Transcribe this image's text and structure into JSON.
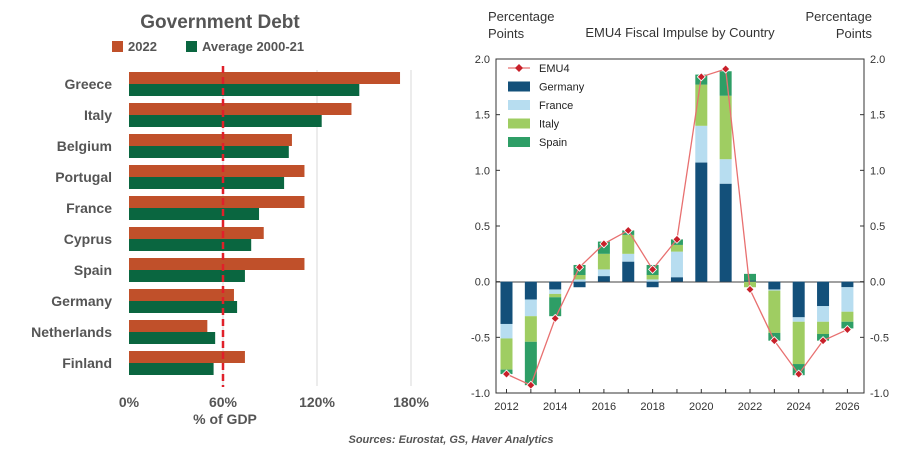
{
  "source": "Sources: Eurostat, GS, Haver Analytics",
  "colors": {
    "bar_2022": "#c0502a",
    "bar_avg": "#0a6640",
    "ref_line": "#e0202a",
    "germany": "#13507a",
    "france": "#b7ddf0",
    "italy": "#9fcd62",
    "spain": "#2e9e66",
    "emu4_line": "#e87070",
    "emu4_marker": "#c8202a"
  },
  "chart_data": [
    {
      "type": "bar",
      "orientation": "horizontal",
      "title": "Government Debt",
      "xlabel": "% of GDP",
      "xlim": [
        0,
        180
      ],
      "xticks": [
        "0%",
        "60%",
        "120%",
        "180%"
      ],
      "reference_line": 60,
      "legend": "top-left",
      "categories": [
        "Greece",
        "Italy",
        "Belgium",
        "Portugal",
        "France",
        "Cyprus",
        "Spain",
        "Germany",
        "Netherlands",
        "Finland"
      ],
      "series": [
        {
          "name": "2022",
          "values": [
            173,
            142,
            104,
            112,
            112,
            86,
            112,
            67,
            50,
            74
          ]
        },
        {
          "name": "Average 2000-21",
          "values": [
            147,
            123,
            102,
            99,
            83,
            78,
            74,
            69,
            55,
            54
          ]
        }
      ]
    },
    {
      "type": "bar",
      "stacked": true,
      "title": "EMU4 Fiscal Impulse by Country",
      "ylabel_left": "Percentage Points",
      "ylabel_right": "Percentage Points",
      "ylim": [
        -1.0,
        2.0
      ],
      "yticks": [
        "-1.0",
        "-0.5",
        "0.0",
        "0.5",
        "1.0",
        "1.5",
        "2.0"
      ],
      "legend": "top-left",
      "x": [
        2012,
        2013,
        2014,
        2015,
        2016,
        2017,
        2018,
        2019,
        2020,
        2021,
        2022,
        2023,
        2024,
        2025,
        2026
      ],
      "xticks": [
        "2012",
        "2014",
        "2016",
        "2018",
        "2020",
        "2022",
        "2024",
        "2026"
      ],
      "series": [
        {
          "name": "Germany",
          "values": [
            -0.38,
            -0.16,
            -0.07,
            -0.05,
            0.05,
            0.18,
            -0.05,
            0.04,
            1.07,
            0.88,
            0.01,
            -0.07,
            -0.32,
            -0.22,
            -0.05
          ]
        },
        {
          "name": "France",
          "values": [
            -0.13,
            -0.15,
            -0.04,
            0.02,
            0.06,
            0.07,
            0.02,
            0.23,
            0.33,
            0.22,
            0.0,
            -0.01,
            -0.04,
            -0.14,
            -0.22
          ]
        },
        {
          "name": "Italy",
          "values": [
            -0.28,
            -0.23,
            -0.03,
            0.04,
            0.14,
            0.17,
            0.04,
            0.06,
            0.37,
            0.57,
            -0.05,
            -0.38,
            -0.38,
            -0.11,
            -0.09
          ]
        },
        {
          "name": "Spain",
          "values": [
            -0.04,
            -0.39,
            -0.17,
            0.09,
            0.11,
            0.04,
            0.09,
            0.05,
            0.09,
            0.22,
            0.06,
            -0.07,
            -0.1,
            -0.06,
            -0.06
          ]
        },
        {
          "name": "EMU4",
          "type": "line",
          "values": [
            -0.83,
            -0.93,
            -0.33,
            0.13,
            0.34,
            0.46,
            0.11,
            0.38,
            1.84,
            1.91,
            -0.07,
            -0.53,
            -0.83,
            -0.53,
            -0.43
          ]
        }
      ]
    }
  ]
}
